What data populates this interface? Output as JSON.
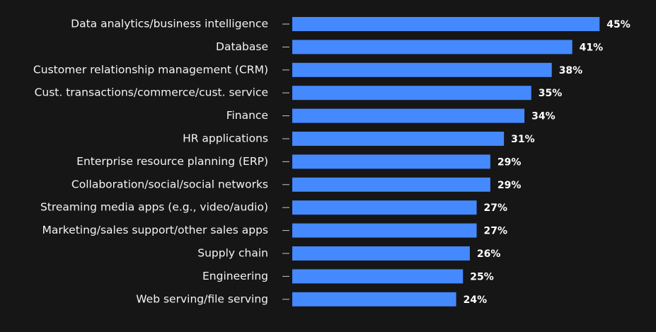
{
  "chart_data": {
    "type": "bar",
    "orientation": "horizontal",
    "color": "#4589ff",
    "categories": [
      "Data analytics/business intelligence",
      "Database",
      "Customer relationship management (CRM)",
      "Cust. transactions/commerce/cust. service",
      "Finance",
      "HR applications",
      "Enterprise resource planning (ERP)",
      "Collaboration/social/social networks",
      "Streaming media apps (e.g., video/audio)",
      "Marketing/sales support/other sales apps",
      "Supply chain",
      "Engineering",
      "Web serving/file serving"
    ],
    "values": [
      45,
      41,
      38,
      35,
      34,
      31,
      29,
      29,
      27,
      27,
      26,
      25,
      24
    ],
    "value_labels": [
      "45%",
      "41%",
      "38%",
      "35%",
      "34%",
      "31%",
      "29%",
      "29%",
      "27%",
      "27%",
      "26%",
      "25%",
      "24%"
    ]
  }
}
